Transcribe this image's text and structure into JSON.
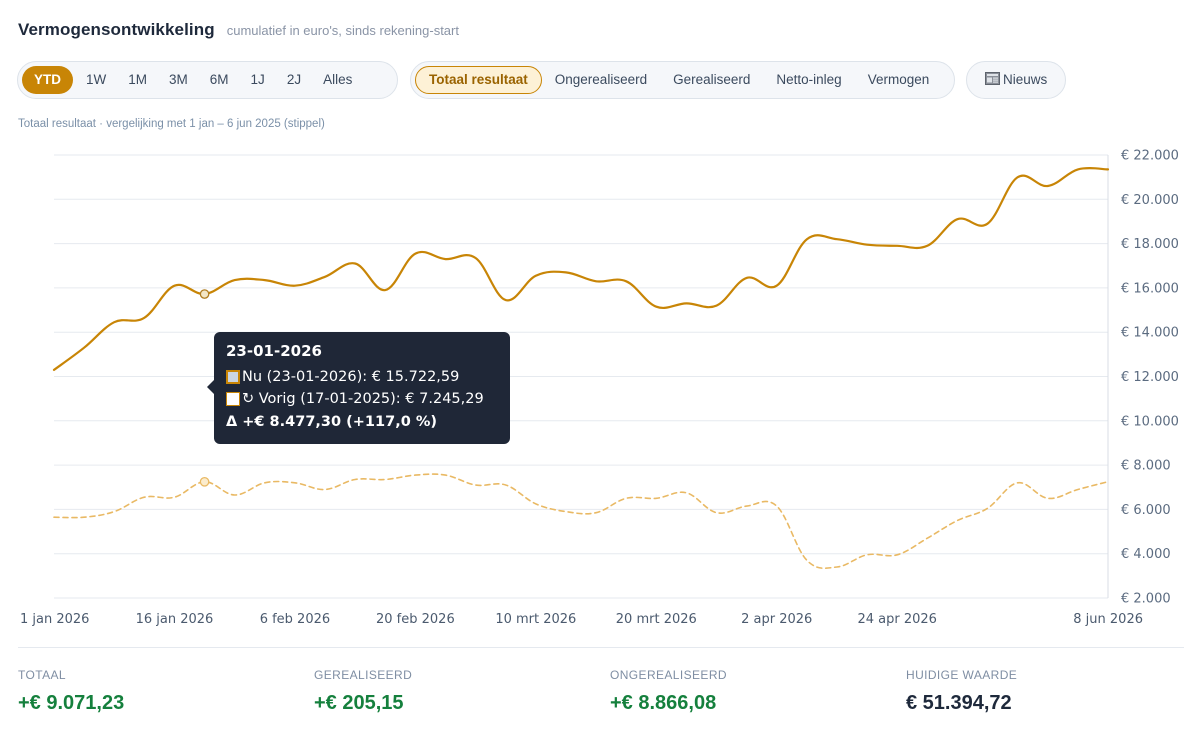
{
  "header": {
    "title": "Vermogensontwikkeling",
    "subtitle": "cumulatief in euro's, sinds rekening-start"
  },
  "range_tabs": [
    "YTD",
    "1W",
    "1M",
    "3M",
    "6M",
    "1J",
    "2J",
    "Alles"
  ],
  "range_active": "YTD",
  "metric_tabs": [
    "Totaal resultaat",
    "Ongerealiseerd",
    "Gerealiseerd",
    "Netto-inleg",
    "Vermogen"
  ],
  "metric_active": "Totaal resultaat",
  "news_button": {
    "icon": "newspaper-icon",
    "label": "Nieuws"
  },
  "compare_note": "Totaal resultaat · vergelijking met 1 jan – 6 jun 2025 (stippel)",
  "colors": {
    "accent": "#c88506",
    "accent_light": "#e9b964",
    "positive": "#15803d",
    "grid": "#e6eaef"
  },
  "chart_data": {
    "type": "line",
    "ylim": [
      2000,
      22000
    ],
    "yticks": [
      "€ 2.000",
      "€ 4.000",
      "€ 6.000",
      "€ 8.000",
      "€ 10.000",
      "€ 12.000",
      "€ 14.000",
      "€ 16.000",
      "€ 18.000",
      "€ 20.000",
      "€ 22.000"
    ],
    "ytick_values": [
      2000,
      4000,
      6000,
      8000,
      10000,
      12000,
      14000,
      16000,
      18000,
      20000,
      22000
    ],
    "xticks": [
      {
        "label": "1 jan 2026",
        "index": 0
      },
      {
        "label": "16 jan 2026",
        "index": 4
      },
      {
        "label": "6 feb 2026",
        "index": 8
      },
      {
        "label": "20 feb 2026",
        "index": 12
      },
      {
        "label": "10 mrt 2026",
        "index": 16
      },
      {
        "label": "20 mrt 2026",
        "index": 20
      },
      {
        "label": "2 apr 2026",
        "index": 24
      },
      {
        "label": "24 apr 2026",
        "index": 28
      },
      {
        "label": "8 jun 2026",
        "index": 35
      }
    ],
    "grid": true,
    "series": [
      {
        "name": "Nu",
        "style": "solid",
        "values": [
          12300,
          13300,
          14450,
          14650,
          16100,
          15722.59,
          16350,
          16350,
          16100,
          16500,
          17100,
          15900,
          17550,
          17300,
          17350,
          15450,
          16550,
          16700,
          16300,
          16300,
          15150,
          15300,
          15200,
          16450,
          16100,
          18200,
          18200,
          17950,
          17900,
          17900,
          19100,
          18900,
          21000,
          20600,
          21350,
          21350
        ]
      },
      {
        "name": "Vorig",
        "style": "dashed",
        "values": [
          5650,
          5650,
          5900,
          6550,
          6550,
          7245.29,
          6650,
          7200,
          7200,
          6900,
          7350,
          7350,
          7550,
          7550,
          7100,
          7100,
          6250,
          5900,
          5850,
          6500,
          6500,
          6750,
          5850,
          6150,
          6150,
          3700,
          3400,
          3950,
          3950,
          4700,
          5500,
          6050,
          7200,
          6500,
          6900,
          7250
        ]
      }
    ],
    "hover_index": 5
  },
  "tooltip": {
    "date": "23-01-2026",
    "now_line": "Nu (23-01-2026): € 15.722,59",
    "prev_line": "↻ Vorig (17-01-2025): € 7.245,29",
    "delta_line": "Δ +€ 8.477,30 (+117,0 %)"
  },
  "stats": [
    {
      "label": "TOTAAL",
      "value": "+€ 9.071,23",
      "tone": "pos"
    },
    {
      "label": "GEREALISEERD",
      "value": "+€ 205,15",
      "tone": "pos"
    },
    {
      "label": "ONGEREALISEERD",
      "value": "+€ 8.866,08",
      "tone": "pos"
    },
    {
      "label": "HUIDIGE WAARDE",
      "value": "€ 51.394,72",
      "tone": "neutral"
    }
  ]
}
